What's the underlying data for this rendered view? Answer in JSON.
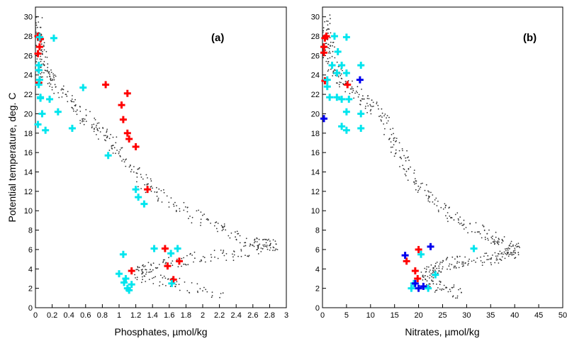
{
  "ylabel": "Potential temperature, deg. C",
  "chart_data": [
    {
      "type": "scatter",
      "tag": "(a)",
      "xlabel": "Phosphates, µmol/kg",
      "xlim": [
        0,
        3
      ],
      "ylim": [
        0,
        31
      ],
      "xticks": [
        "0",
        "0.2",
        "0.4",
        "0.6",
        "0.8",
        "1",
        "1.2",
        "1.4",
        "1.6",
        "1.8",
        "2",
        "2.2",
        "2.4",
        "2.6",
        "2.8",
        "3"
      ],
      "xtick_values": [
        0,
        0.2,
        0.4,
        0.6,
        0.8,
        1,
        1.2,
        1.4,
        1.6,
        1.8,
        2,
        2.2,
        2.4,
        2.6,
        2.8,
        3
      ],
      "yticks": [
        "0",
        "2",
        "4",
        "6",
        "8",
        "10",
        "12",
        "14",
        "16",
        "18",
        "20",
        "22",
        "24",
        "26",
        "28",
        "30"
      ],
      "ytick_values": [
        0,
        2,
        4,
        6,
        8,
        10,
        12,
        14,
        16,
        18,
        20,
        22,
        24,
        26,
        28,
        30
      ],
      "background_trend": [
        [
          0.02,
          30
        ],
        [
          0.04,
          28
        ],
        [
          0.06,
          26
        ],
        [
          0.1,
          24.5
        ],
        [
          0.2,
          23.5
        ],
        [
          0.4,
          21.5
        ],
        [
          0.6,
          19.5
        ],
        [
          0.8,
          18
        ],
        [
          1.0,
          16
        ],
        [
          1.3,
          13
        ],
        [
          1.6,
          11
        ],
        [
          2.0,
          9
        ],
        [
          2.4,
          7.5
        ],
        [
          2.7,
          6.5
        ],
        [
          2.85,
          6.5
        ],
        [
          2.4,
          5.5
        ],
        [
          1.8,
          5
        ],
        [
          1.4,
          4.3
        ],
        [
          1.2,
          3.5
        ],
        [
          1.6,
          2.6
        ],
        [
          2.2,
          1.5
        ]
      ],
      "series": [
        {
          "color": "#ff0000",
          "values": [
            [
              0.05,
              27.9
            ],
            [
              0.03,
              28.0
            ],
            [
              0.06,
              27.7
            ],
            [
              0.05,
              26.9
            ],
            [
              0.03,
              26.2
            ],
            [
              0.04,
              23.2
            ],
            [
              0.84,
              23.0
            ],
            [
              1.1,
              22.1
            ],
            [
              1.03,
              20.9
            ],
            [
              1.05,
              19.4
            ],
            [
              1.1,
              18.0
            ],
            [
              1.12,
              17.4
            ],
            [
              1.2,
              16.6
            ],
            [
              1.34,
              12.2
            ],
            [
              1.55,
              6.1
            ],
            [
              1.72,
              4.8
            ],
            [
              1.58,
              4.3
            ],
            [
              1.15,
              3.8
            ],
            [
              1.65,
              2.9
            ]
          ]
        },
        {
          "color": "#00e5ee",
          "values": [
            [
              0.22,
              27.8
            ],
            [
              0.05,
              27.9
            ],
            [
              0.04,
              25.0
            ],
            [
              0.04,
              24.5
            ],
            [
              0.05,
              23.5
            ],
            [
              0.04,
              23.0
            ],
            [
              0.57,
              22.7
            ],
            [
              0.06,
              21.6
            ],
            [
              0.17,
              21.5
            ],
            [
              0.06,
              21.7
            ],
            [
              0.08,
              20.0
            ],
            [
              0.27,
              20.2
            ],
            [
              0.03,
              18.9
            ],
            [
              0.12,
              18.3
            ],
            [
              0.44,
              18.5
            ],
            [
              0.87,
              15.7
            ],
            [
              1.2,
              12.2
            ],
            [
              1.23,
              11.4
            ],
            [
              1.3,
              10.7
            ],
            [
              1.42,
              6.1
            ],
            [
              1.7,
              6.1
            ],
            [
              1.62,
              5.6
            ],
            [
              1.05,
              5.5
            ],
            [
              1.0,
              3.5
            ],
            [
              1.08,
              3.0
            ],
            [
              1.15,
              2.4
            ],
            [
              1.1,
              2.0
            ],
            [
              1.12,
              1.8
            ],
            [
              1.06,
              2.6
            ],
            [
              1.63,
              2.5
            ]
          ]
        }
      ]
    },
    {
      "type": "scatter",
      "tag": "(b)",
      "xlabel": "Nitrates, µmol/kg",
      "xlim": [
        0,
        50
      ],
      "ylim": [
        0,
        31
      ],
      "xticks": [
        "0",
        "5",
        "10",
        "15",
        "20",
        "25",
        "30",
        "35",
        "40",
        "45",
        "50"
      ],
      "xtick_values": [
        0,
        5,
        10,
        15,
        20,
        25,
        30,
        35,
        40,
        45,
        50
      ],
      "yticks": [
        "0",
        "2",
        "4",
        "6",
        "8",
        "10",
        "12",
        "14",
        "16",
        "18",
        "20",
        "22",
        "24",
        "26",
        "28",
        "30"
      ],
      "ytick_values": [
        0,
        2,
        4,
        6,
        8,
        10,
        12,
        14,
        16,
        18,
        20,
        22,
        24,
        26,
        28,
        30
      ],
      "background_trend": [
        [
          0.3,
          30
        ],
        [
          0.8,
          28
        ],
        [
          1.5,
          26
        ],
        [
          3,
          24
        ],
        [
          6,
          22.5
        ],
        [
          10,
          21
        ],
        [
          13,
          19
        ],
        [
          16,
          16
        ],
        [
          19,
          13
        ],
        [
          23,
          11
        ],
        [
          28,
          9
        ],
        [
          34,
          7.5
        ],
        [
          38,
          6.5
        ],
        [
          40,
          6
        ],
        [
          37,
          5.2
        ],
        [
          32,
          4.8
        ],
        [
          27,
          4.7
        ],
        [
          24,
          4
        ],
        [
          21,
          3.2
        ],
        [
          24,
          2.2
        ],
        [
          29,
          1.3
        ]
      ],
      "series": [
        {
          "color": "#ff0000",
          "values": [
            [
              0.8,
              28.0
            ],
            [
              0.5,
              27.8
            ],
            [
              0.3,
              26.9
            ],
            [
              0.3,
              26.3
            ],
            [
              0.5,
              23.4
            ],
            [
              5.2,
              23.0
            ],
            [
              20,
              6.0
            ],
            [
              17.5,
              4.8
            ],
            [
              19.3,
              3.8
            ],
            [
              19.8,
              3.0
            ]
          ]
        },
        {
          "color": "#00e5ee",
          "values": [
            [
              2.5,
              28.0
            ],
            [
              5.0,
              27.9
            ],
            [
              3.2,
              26.4
            ],
            [
              2.0,
              25.0
            ],
            [
              4.0,
              25.0
            ],
            [
              8.0,
              25.0
            ],
            [
              3.0,
              24.2
            ],
            [
              5.0,
              24.2
            ],
            [
              1.0,
              23.5
            ],
            [
              1.0,
              22.8
            ],
            [
              1.5,
              21.7
            ],
            [
              3.0,
              21.7
            ],
            [
              5.5,
              21.5
            ],
            [
              4.0,
              21.5
            ],
            [
              5.0,
              20.2
            ],
            [
              8.0,
              20.0
            ],
            [
              4.0,
              18.7
            ],
            [
              5.0,
              18.3
            ],
            [
              8.0,
              18.5
            ],
            [
              31.5,
              6.1
            ],
            [
              20.5,
              5.5
            ],
            [
              23.5,
              3.4
            ],
            [
              19.0,
              2.5
            ],
            [
              18.5,
              2.0
            ],
            [
              22.0,
              2.0
            ]
          ]
        },
        {
          "color": "#0000ee",
          "values": [
            [
              7.8,
              23.5
            ],
            [
              0.3,
              19.5
            ],
            [
              22.5,
              6.3
            ],
            [
              17.2,
              5.4
            ],
            [
              19.3,
              2.5
            ],
            [
              20.0,
              2.0
            ],
            [
              21.0,
              2.2
            ]
          ]
        }
      ]
    }
  ]
}
